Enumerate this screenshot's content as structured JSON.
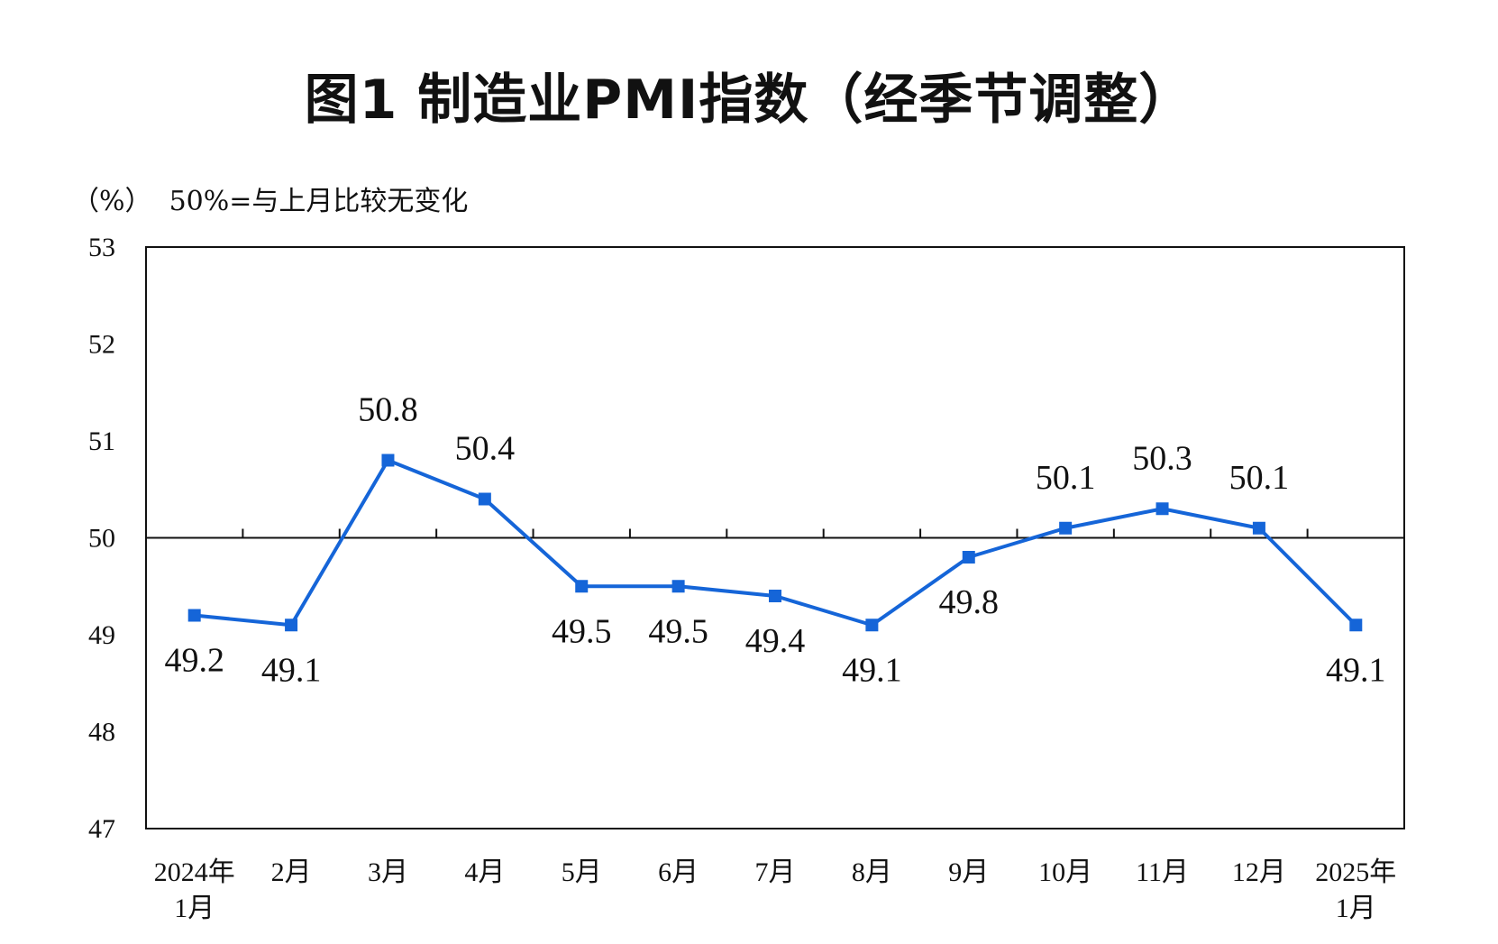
{
  "title": "图1  制造业PMI指数（经季节调整）",
  "unit_note": "（%）  50%=与上月比较无变化",
  "colors": {
    "series": "#1565D8",
    "axis": "#111111"
  },
  "chart_data": {
    "type": "line",
    "title": "图1  制造业PMI指数（经季节调整）",
    "ylabel": "（%）",
    "annotation": "50%=与上月比较无变化",
    "ylim": [
      47,
      53
    ],
    "yticks": [
      47,
      48,
      49,
      50,
      51,
      52,
      53
    ],
    "reference_line": 50,
    "grid": false,
    "legend": "none",
    "categories": [
      [
        "2024年",
        "1月"
      ],
      [
        "2月"
      ],
      [
        "3月"
      ],
      [
        "4月"
      ],
      [
        "5月"
      ],
      [
        "6月"
      ],
      [
        "7月"
      ],
      [
        "8月"
      ],
      [
        "9月"
      ],
      [
        "10月"
      ],
      [
        "11月"
      ],
      [
        "12月"
      ],
      [
        "2025年",
        "1月"
      ]
    ],
    "series": [
      {
        "values": [
          49.2,
          49.1,
          50.8,
          50.4,
          49.5,
          49.5,
          49.4,
          49.1,
          49.8,
          50.1,
          50.3,
          50.1,
          49.1
        ],
        "labels": [
          "49.2",
          "49.1",
          "50.8",
          "50.4",
          "49.5",
          "49.5",
          "49.4",
          "49.1",
          "49.8",
          "50.1",
          "50.3",
          "50.1",
          "49.1"
        ],
        "label_positions": [
          "below",
          "below",
          "above",
          "above",
          "below",
          "below",
          "below",
          "below",
          "below",
          "above",
          "above",
          "above",
          "below"
        ],
        "marker": "square"
      }
    ]
  }
}
